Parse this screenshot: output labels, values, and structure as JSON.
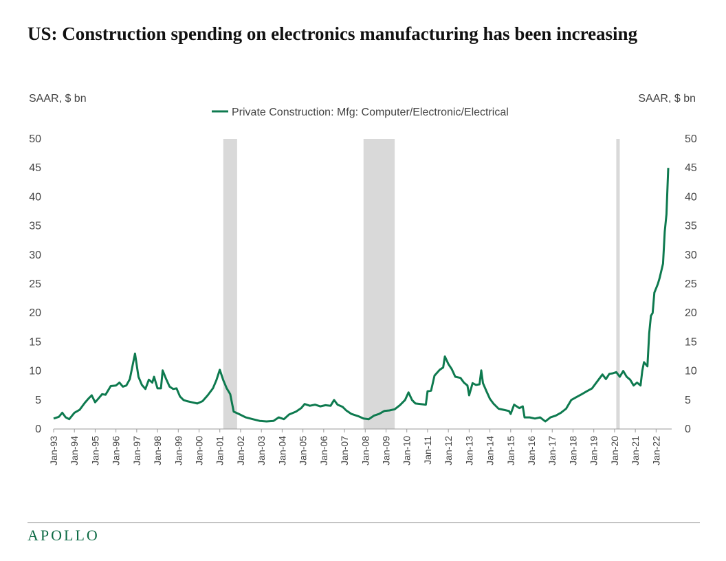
{
  "title": "US: Construction spending on electronics manufacturing has been increasing",
  "logo": "APOLLO",
  "colors": {
    "series": "#0e7a4f",
    "recession": "#d9d9d9",
    "logo": "#0e6b45"
  },
  "chart_data": {
    "type": "line",
    "title": "US: Construction spending on electronics manufacturing has been increasing",
    "ylabel_left": "SAAR, $ bn",
    "ylabel_right": "SAAR, $ bn",
    "ylim": [
      0,
      50
    ],
    "yticks": [
      0,
      5,
      10,
      15,
      20,
      25,
      30,
      35,
      40,
      45,
      50
    ],
    "xlim": [
      "1993-01",
      "2022-10"
    ],
    "x_tick_labels": [
      "Jan-93",
      "Jan-94",
      "Jan-95",
      "Jan-96",
      "Jan-97",
      "Jan-98",
      "Jan-99",
      "Jan-00",
      "Jan-01",
      "Jan-02",
      "Jan-03",
      "Jan-04",
      "Jan-05",
      "Jan-06",
      "Jan-07",
      "Jan-08",
      "Jan-09",
      "Jan-10",
      "Jan-11",
      "Jan-12",
      "Jan-13",
      "Jan-14",
      "Jan-15",
      "Jan-16",
      "Jan-17",
      "Jan-18",
      "Jan-19",
      "Jan-20",
      "Jan-21",
      "Jan-22"
    ],
    "legend": "top-center",
    "grid": false,
    "recessions": [
      [
        "2001-03",
        "2001-11"
      ],
      [
        "2007-12",
        "2009-06"
      ],
      [
        "2020-02",
        "2020-04"
      ]
    ],
    "series": [
      {
        "name": "Private Construction: Mfg: Computer/Electronic/Electrical",
        "points": [
          [
            "1993-01",
            1.8
          ],
          [
            "1993-04",
            2.1
          ],
          [
            "1993-06",
            2.8
          ],
          [
            "1993-08",
            2.0
          ],
          [
            "1993-10",
            1.7
          ],
          [
            "1994-01",
            2.8
          ],
          [
            "1994-04",
            3.3
          ],
          [
            "1994-07",
            4.5
          ],
          [
            "1994-09",
            5.2
          ],
          [
            "1994-11",
            5.8
          ],
          [
            "1995-01",
            4.6
          ],
          [
            "1995-03",
            5.3
          ],
          [
            "1995-05",
            6.0
          ],
          [
            "1995-07",
            5.9
          ],
          [
            "1995-10",
            7.4
          ],
          [
            "1996-01",
            7.5
          ],
          [
            "1996-03",
            8.0
          ],
          [
            "1996-05",
            7.3
          ],
          [
            "1996-07",
            7.5
          ],
          [
            "1996-09",
            8.6
          ],
          [
            "1996-11",
            11.5
          ],
          [
            "1996-12",
            13.0
          ],
          [
            "1997-02",
            9.0
          ],
          [
            "1997-04",
            7.6
          ],
          [
            "1997-06",
            6.9
          ],
          [
            "1997-08",
            8.5
          ],
          [
            "1997-10",
            8.0
          ],
          [
            "1997-11",
            9.0
          ],
          [
            "1998-01",
            7.0
          ],
          [
            "1998-03",
            7.0
          ],
          [
            "1998-04",
            10.1
          ],
          [
            "1998-06",
            8.6
          ],
          [
            "1998-08",
            7.3
          ],
          [
            "1998-10",
            6.9
          ],
          [
            "1998-12",
            7.0
          ],
          [
            "1999-02",
            5.6
          ],
          [
            "1999-04",
            5.0
          ],
          [
            "1999-06",
            4.8
          ],
          [
            "1999-09",
            4.6
          ],
          [
            "1999-12",
            4.4
          ],
          [
            "2000-03",
            4.8
          ],
          [
            "2000-06",
            5.8
          ],
          [
            "2000-09",
            7.0
          ],
          [
            "2000-11",
            8.4
          ],
          [
            "2001-01",
            10.2
          ],
          [
            "2001-03",
            8.4
          ],
          [
            "2001-05",
            7.0
          ],
          [
            "2001-07",
            6.0
          ],
          [
            "2001-09",
            3.0
          ],
          [
            "2001-12",
            2.6
          ],
          [
            "2002-04",
            2.0
          ],
          [
            "2002-08",
            1.7
          ],
          [
            "2002-12",
            1.4
          ],
          [
            "2003-04",
            1.3
          ],
          [
            "2003-08",
            1.4
          ],
          [
            "2003-11",
            2.0
          ],
          [
            "2004-02",
            1.7
          ],
          [
            "2004-05",
            2.5
          ],
          [
            "2004-09",
            3.0
          ],
          [
            "2004-12",
            3.6
          ],
          [
            "2005-02",
            4.3
          ],
          [
            "2005-05",
            4.0
          ],
          [
            "2005-08",
            4.2
          ],
          [
            "2005-11",
            3.9
          ],
          [
            "2006-02",
            4.1
          ],
          [
            "2006-05",
            4.0
          ],
          [
            "2006-07",
            5.0
          ],
          [
            "2006-09",
            4.2
          ],
          [
            "2006-12",
            3.8
          ],
          [
            "2007-02",
            3.2
          ],
          [
            "2007-05",
            2.6
          ],
          [
            "2007-09",
            2.2
          ],
          [
            "2007-12",
            1.8
          ],
          [
            "2008-03",
            1.7
          ],
          [
            "2008-06",
            2.3
          ],
          [
            "2008-09",
            2.6
          ],
          [
            "2008-12",
            3.1
          ],
          [
            "2009-03",
            3.2
          ],
          [
            "2009-06",
            3.4
          ],
          [
            "2009-09",
            4.1
          ],
          [
            "2009-12",
            5.0
          ],
          [
            "2010-02",
            6.3
          ],
          [
            "2010-04",
            5.0
          ],
          [
            "2010-06",
            4.4
          ],
          [
            "2010-09",
            4.3
          ],
          [
            "2010-12",
            4.2
          ],
          [
            "2011-01",
            6.5
          ],
          [
            "2011-03",
            6.6
          ],
          [
            "2011-05",
            9.2
          ],
          [
            "2011-08",
            10.2
          ],
          [
            "2011-10",
            10.6
          ],
          [
            "2011-11",
            12.5
          ],
          [
            "2012-01",
            11.2
          ],
          [
            "2012-03",
            10.3
          ],
          [
            "2012-05",
            9.0
          ],
          [
            "2012-08",
            8.8
          ],
          [
            "2012-10",
            8.0
          ],
          [
            "2012-12",
            7.5
          ],
          [
            "2013-01",
            5.8
          ],
          [
            "2013-03",
            7.9
          ],
          [
            "2013-05",
            7.6
          ],
          [
            "2013-07",
            7.7
          ],
          [
            "2013-08",
            10.1
          ],
          [
            "2013-09",
            7.9
          ],
          [
            "2013-11",
            6.5
          ],
          [
            "2014-01",
            5.2
          ],
          [
            "2014-03",
            4.4
          ],
          [
            "2014-06",
            3.5
          ],
          [
            "2014-09",
            3.3
          ],
          [
            "2014-12",
            3.1
          ],
          [
            "2015-01",
            2.6
          ],
          [
            "2015-03",
            4.2
          ],
          [
            "2015-06",
            3.6
          ],
          [
            "2015-08",
            3.9
          ],
          [
            "2015-09",
            2.0
          ],
          [
            "2015-12",
            2.0
          ],
          [
            "2016-03",
            1.8
          ],
          [
            "2016-06",
            2.0
          ],
          [
            "2016-09",
            1.3
          ],
          [
            "2016-12",
            2.0
          ],
          [
            "2017-03",
            2.3
          ],
          [
            "2017-06",
            2.8
          ],
          [
            "2017-09",
            3.5
          ],
          [
            "2017-12",
            5.0
          ],
          [
            "2018-03",
            5.5
          ],
          [
            "2018-06",
            6.0
          ],
          [
            "2018-09",
            6.5
          ],
          [
            "2018-12",
            7.0
          ],
          [
            "2019-03",
            8.2
          ],
          [
            "2019-06",
            9.4
          ],
          [
            "2019-08",
            8.6
          ],
          [
            "2019-10",
            9.5
          ],
          [
            "2019-12",
            9.6
          ],
          [
            "2020-02",
            9.8
          ],
          [
            "2020-04",
            9.0
          ],
          [
            "2020-06",
            10.0
          ],
          [
            "2020-08",
            9.0
          ],
          [
            "2020-10",
            8.5
          ],
          [
            "2020-12",
            7.5
          ],
          [
            "2021-02",
            8.0
          ],
          [
            "2021-04",
            7.5
          ],
          [
            "2021-05",
            10.0
          ],
          [
            "2021-06",
            11.5
          ],
          [
            "2021-08",
            10.8
          ],
          [
            "2021-09",
            16.5
          ],
          [
            "2021-10",
            19.5
          ],
          [
            "2021-11",
            20.0
          ],
          [
            "2021-12",
            23.5
          ],
          [
            "2022-02",
            25.0
          ],
          [
            "2022-03",
            26.0
          ],
          [
            "2022-05",
            28.5
          ],
          [
            "2022-06",
            34.0
          ],
          [
            "2022-07",
            37.0
          ],
          [
            "2022-08",
            45.0
          ]
        ]
      }
    ]
  }
}
